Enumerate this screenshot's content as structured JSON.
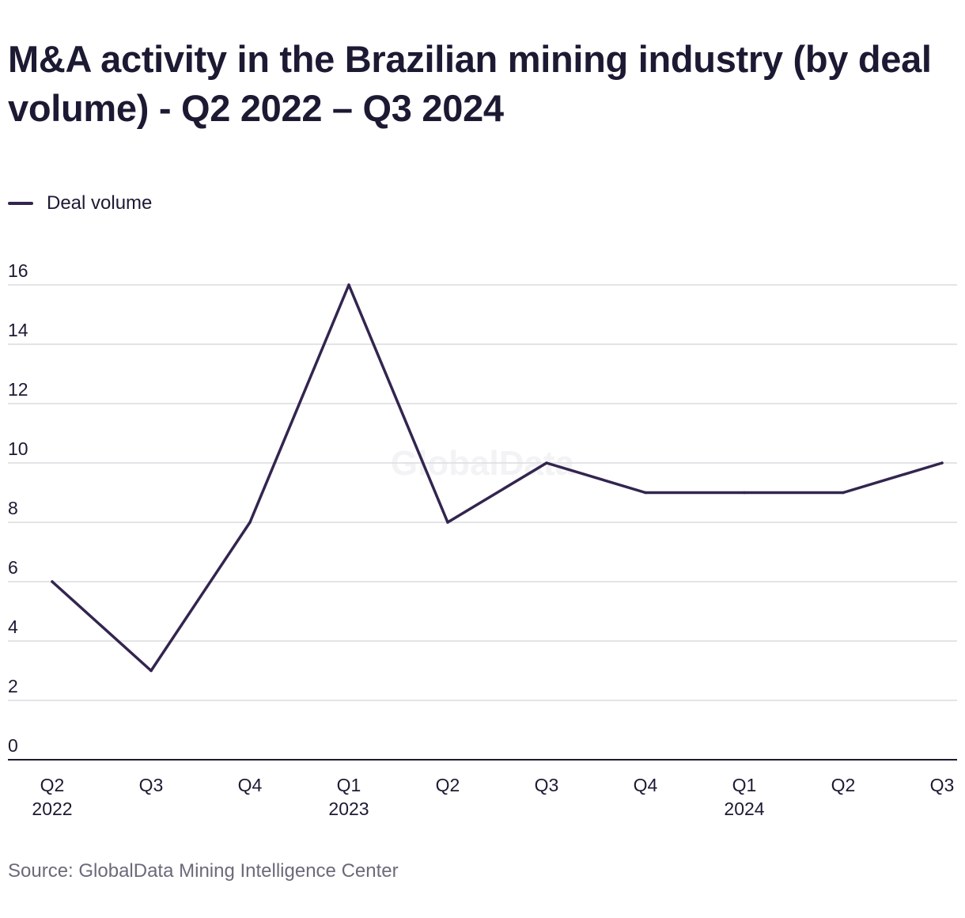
{
  "title": "M&A activity in the Brazilian mining industry (by deal volume) - Q2 2022 – Q3 2024",
  "legend": {
    "label": "Deal volume",
    "color": "#33254f"
  },
  "watermark": "GlobalData",
  "source": "Source: GlobalData Mining Intelligence Center",
  "chart_data": {
    "type": "line",
    "title": "M&A activity in the Brazilian mining industry (by deal volume) - Q2 2022 – Q3 2024",
    "xlabel": "",
    "ylabel": "",
    "categories": [
      {
        "quarter": "Q2",
        "year": "2022"
      },
      {
        "quarter": "Q3",
        "year": ""
      },
      {
        "quarter": "Q4",
        "year": ""
      },
      {
        "quarter": "Q1",
        "year": "2023"
      },
      {
        "quarter": "Q2",
        "year": ""
      },
      {
        "quarter": "Q3",
        "year": ""
      },
      {
        "quarter": "Q4",
        "year": ""
      },
      {
        "quarter": "Q1",
        "year": "2024"
      },
      {
        "quarter": "Q2",
        "year": ""
      },
      {
        "quarter": "Q3",
        "year": ""
      }
    ],
    "series": [
      {
        "name": "Deal volume",
        "color": "#33254f",
        "values": [
          6,
          3,
          8,
          16,
          8,
          10,
          9,
          9,
          9,
          10
        ]
      }
    ],
    "ylim": [
      0,
      16
    ],
    "yticks": [
      0,
      2,
      4,
      6,
      8,
      10,
      12,
      14,
      16
    ],
    "grid": true,
    "legend_position": "top-left"
  }
}
